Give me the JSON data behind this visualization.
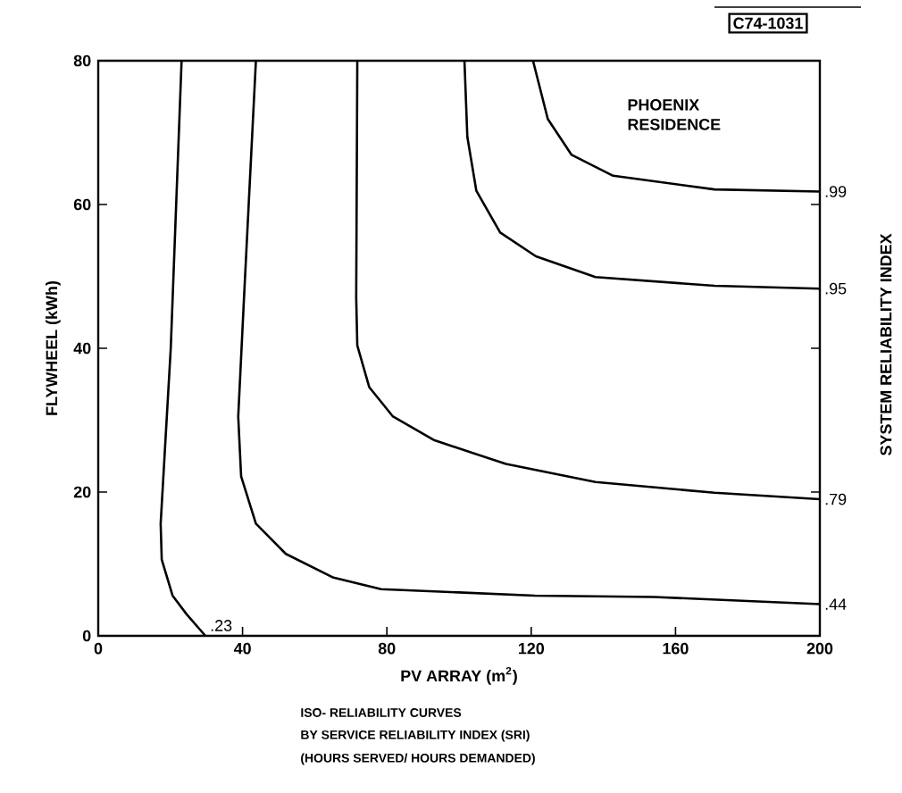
{
  "chart_data": {
    "type": "line",
    "xlabel": "PV ARRAY (m$^{2}$)",
    "ylabel": "FLYWHEEL (kWh)",
    "y2label": "SYSTEM RELIABILITY INDEX",
    "annotations": [
      "C74-1031",
      "PHOENIX RESIDENCE",
      "ISO- RELIABILITY CURVES",
      "BY SERVICE RELIABILITY INDEX (SRI)",
      "(HOURS SERVED/ HOURS DEMANDED)"
    ],
    "xlim": [
      0,
      200
    ],
    "ylim": [
      0,
      80
    ],
    "xticks": [
      0,
      40,
      80,
      120,
      160,
      200
    ],
    "yticks": [
      0,
      20,
      40,
      60,
      80
    ],
    "grid": false,
    "legend": "right",
    "marker": "none",
    "line_style": "solid",
    "series": [
      {
        "name": ".23",
        "color": "#000000",
        "x": [
          29.7,
          24.5,
          20.6,
          17.6,
          17.3,
          20.1,
          23.1
        ],
        "values": [
          0,
          3,
          5.6,
          10.6,
          15.6,
          40,
          80
        ]
      },
      {
        "name": ".44",
        "color": "#000000",
        "x": [
          200,
          154,
          121,
          78.4,
          65.2,
          52,
          43.7,
          39.6,
          38.8,
          40.4,
          43.7
        ],
        "values": [
          4.4,
          5.4,
          5.6,
          6.5,
          8.1,
          11.4,
          15.6,
          22.2,
          30.5,
          47,
          80
        ]
      },
      {
        "name": ".79",
        "color": "#000000",
        "x": [
          200,
          170.8,
          137.8,
          113,
          93.2,
          81.7,
          75.1,
          71.8,
          71.5,
          71.8
        ],
        "values": [
          19.0,
          19.9,
          21.4,
          23.9,
          27.2,
          30.5,
          34.6,
          40.4,
          47,
          80
        ]
      },
      {
        "name": ".95",
        "color": "#000000",
        "x": [
          200,
          170.8,
          137.8,
          121.3,
          111.4,
          104.8,
          102.3,
          101.5
        ],
        "values": [
          48.3,
          48.7,
          49.9,
          52.8,
          56.1,
          61.9,
          69.4,
          80
        ]
      },
      {
        "name": ".99",
        "color": "#000000",
        "x": [
          200,
          170.8,
          142.7,
          131.2,
          124.6,
          120.5
        ],
        "values": [
          61.8,
          62.1,
          64,
          66.9,
          71.9,
          80
        ]
      }
    ]
  }
}
